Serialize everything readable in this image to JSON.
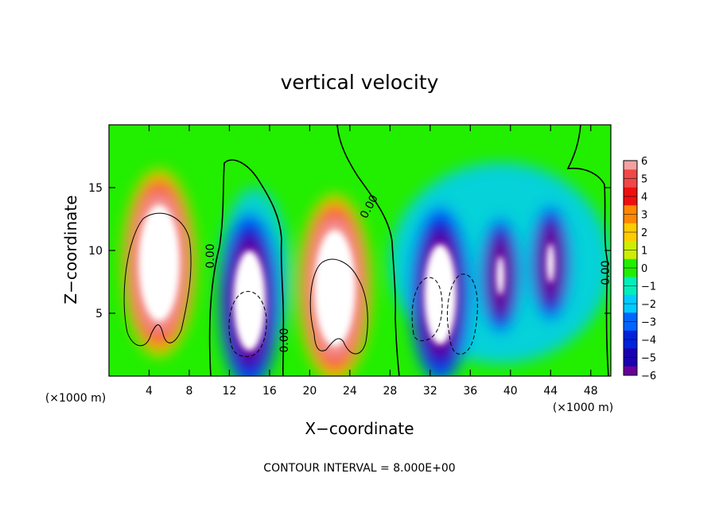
{
  "chart_data": {
    "type": "heatmap",
    "title": "vertical velocity",
    "xlabel": "X−coordinate",
    "ylabel": "Z−coordinate",
    "x_unit": "(×1000 m)",
    "x_unit_right": "(×1000 m)",
    "footnote": "CONTOUR INTERVAL = 8.000E+00",
    "xlim": [
      0,
      50
    ],
    "ylim": [
      0,
      20
    ],
    "x_ticks": [
      4,
      8,
      12,
      16,
      20,
      24,
      28,
      32,
      36,
      40,
      44,
      48
    ],
    "x_tick_labels": [
      "4",
      "8",
      "12",
      "16",
      "20",
      "24",
      "28",
      "32",
      "36",
      "40",
      "44",
      "48"
    ],
    "y_ticks": [
      5,
      10,
      15
    ],
    "y_tick_labels": [
      "5",
      "10",
      "15"
    ],
    "contour_labels": [
      "0.00",
      "0.00",
      "0.00",
      "0.00"
    ],
    "colorbar": {
      "min": -6,
      "max": 6,
      "tick_labels": [
        "6",
        "5",
        "4",
        "3",
        "2",
        "1",
        "0",
        "−1",
        "−2",
        "−3",
        "−4",
        "−5",
        "−6"
      ],
      "colors": [
        "#f4a0a0",
        "#f04848",
        "#ee1010",
        "#ff8800",
        "#ffcc00",
        "#cdee00",
        "#22ee00",
        "#00eebb",
        "#00ccff",
        "#0066ff",
        "#0022dd",
        "#1a00b0",
        "#6a0099"
      ]
    },
    "features": [
      {
        "kind": "updraft",
        "x": 5,
        "z": 9,
        "peak": 8
      },
      {
        "kind": "downdraft",
        "x": 14,
        "z": 6,
        "peak": -8
      },
      {
        "kind": "updraft",
        "x": 22.5,
        "z": 7,
        "peak": 8
      },
      {
        "kind": "downdraft",
        "x": 33,
        "z": 6.5,
        "peak": -8
      },
      {
        "kind": "downdraft",
        "x": 39,
        "z": 8,
        "peak": -6
      },
      {
        "kind": "downdraft",
        "x": 44,
        "z": 9,
        "peak": -6
      }
    ]
  }
}
